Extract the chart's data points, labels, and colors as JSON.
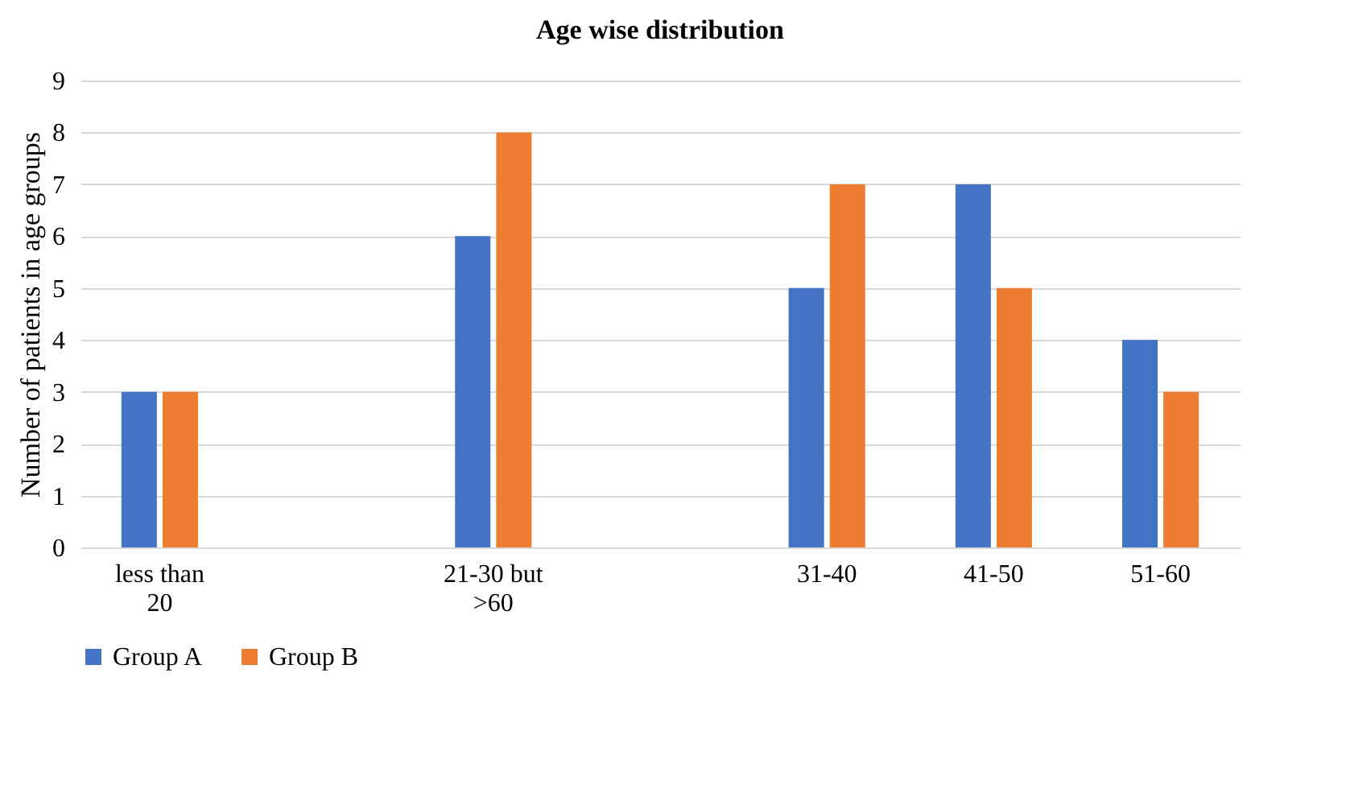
{
  "chart_data": {
    "type": "bar",
    "title": "Age wise distribution",
    "ylabel": "Number of patients in age groups",
    "categories": [
      "less than 20",
      null,
      "21-30 but >60",
      null,
      "31-40",
      "41-50",
      "51-60"
    ],
    "series": [
      {
        "name": "Group A",
        "color": "#4472c4",
        "values": [
          3,
          null,
          6,
          null,
          5,
          7,
          4
        ]
      },
      {
        "name": "Group B",
        "color": "#ed7d31",
        "values": [
          3,
          null,
          8,
          null,
          7,
          5,
          3
        ]
      }
    ],
    "ylim": [
      0,
      9
    ],
    "yticks": [
      0,
      1,
      2,
      3,
      4,
      5,
      6,
      7,
      8,
      9
    ],
    "grid": "y",
    "legend": "bottom"
  }
}
